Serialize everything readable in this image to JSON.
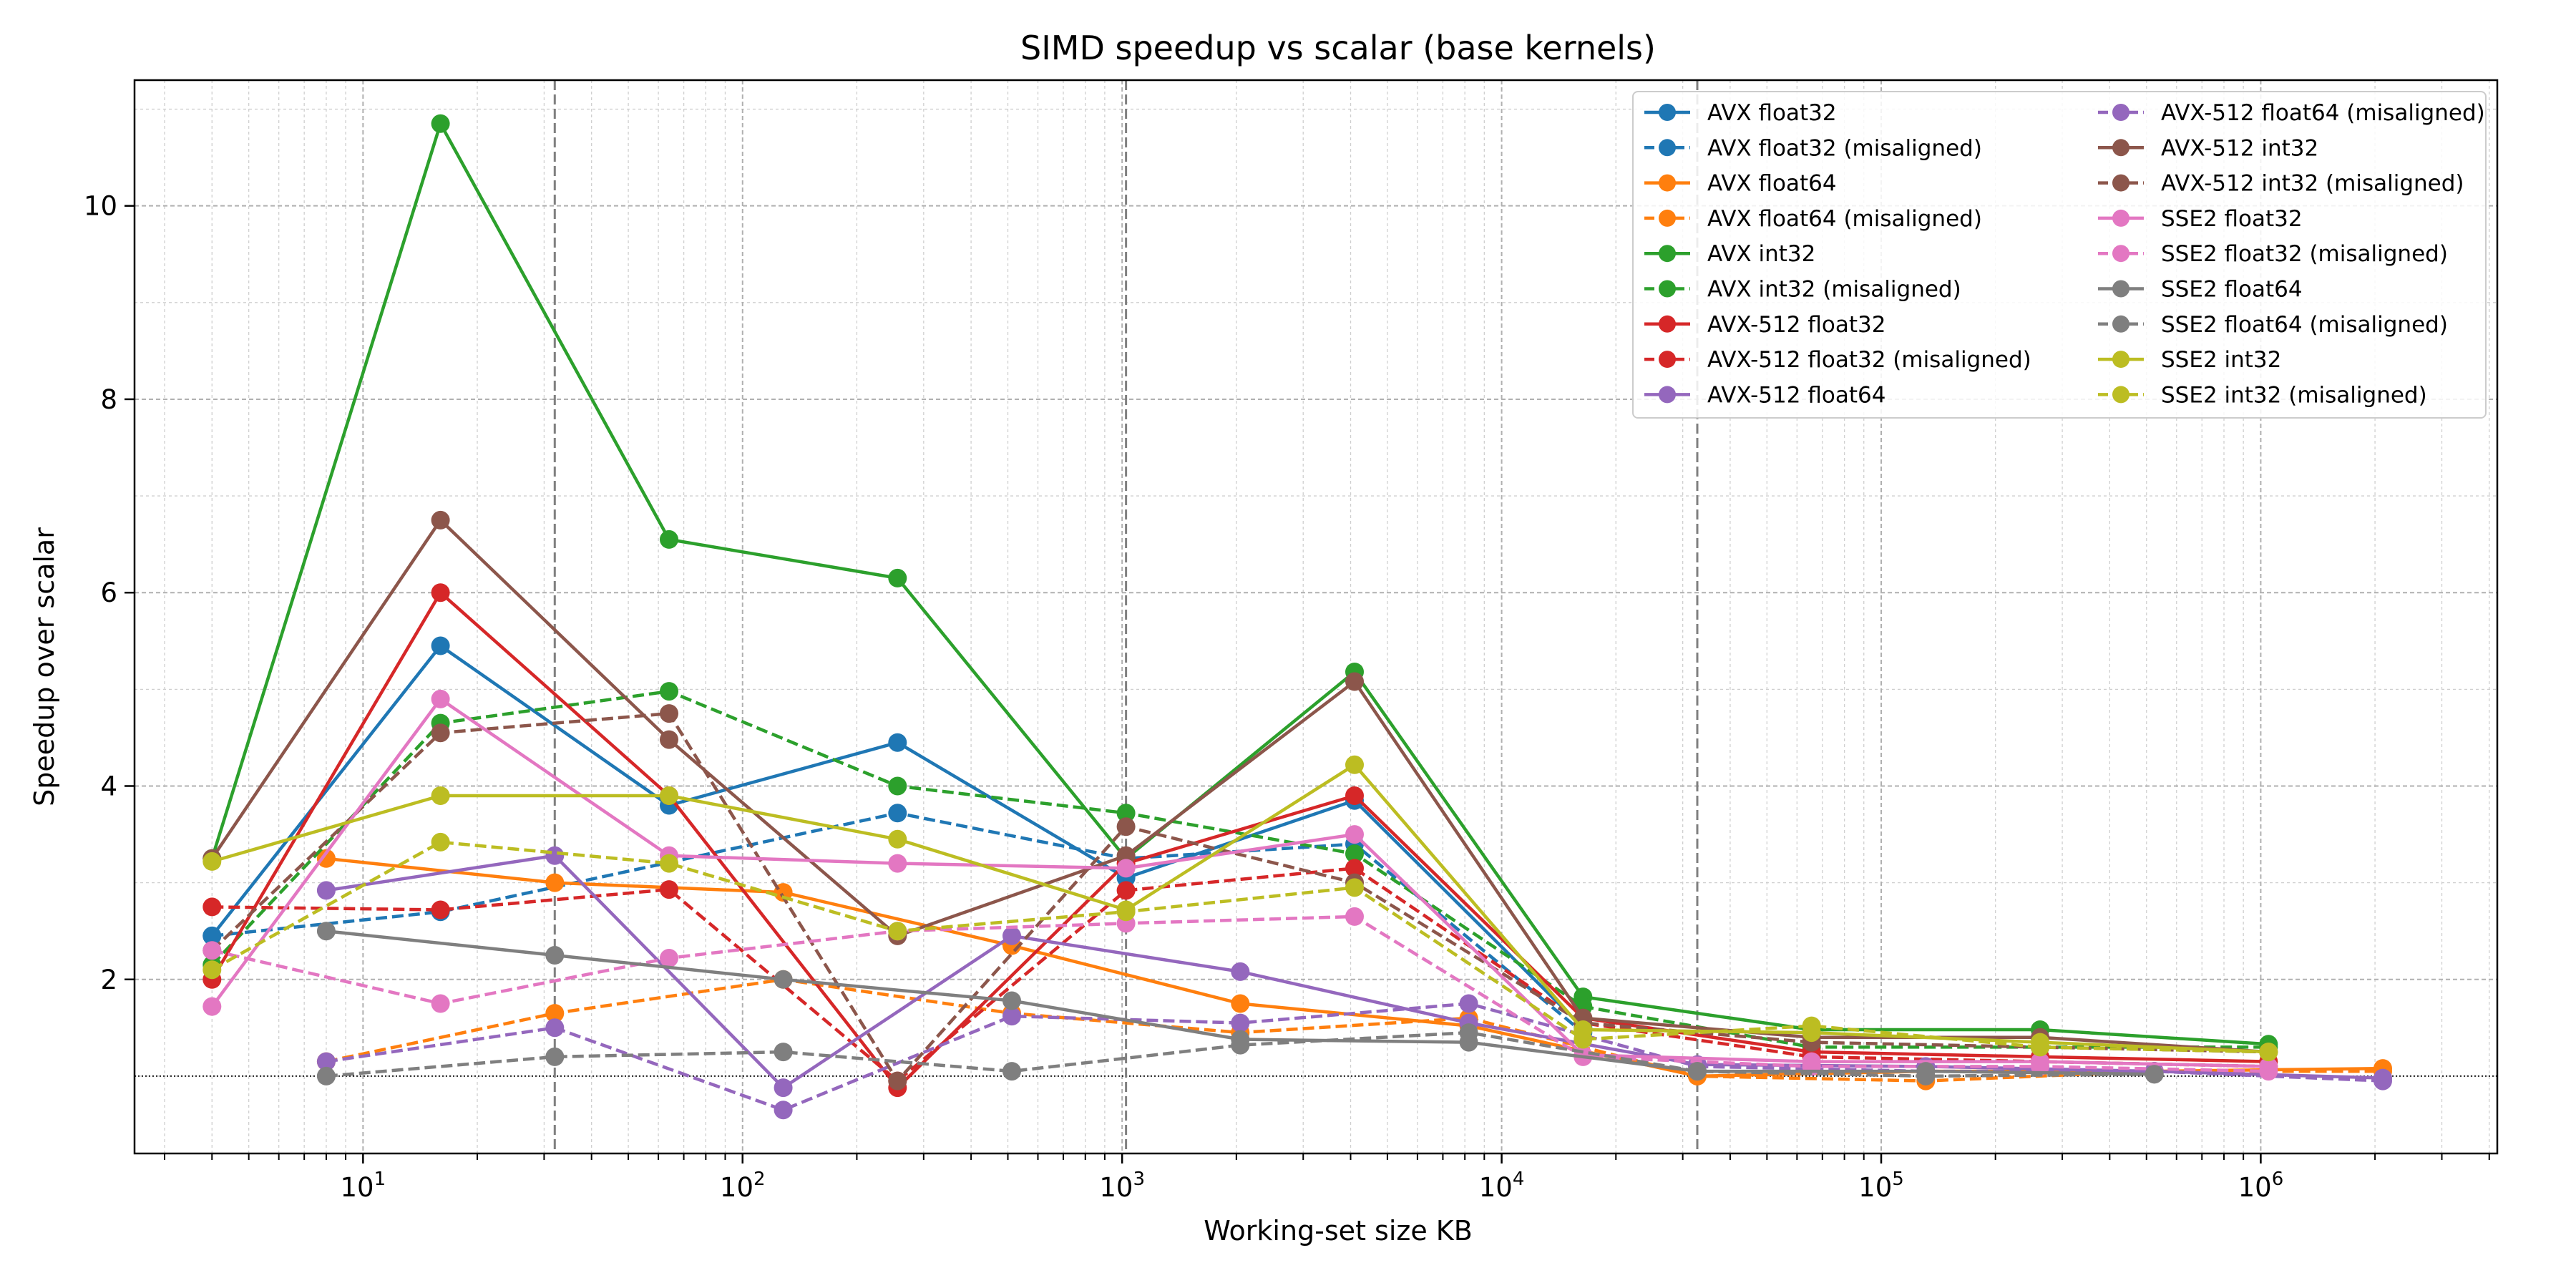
{
  "chart_data": {
    "type": "line",
    "title": "SIMD speedup vs scalar (base kernels)",
    "xlabel": "Working-set size KB",
    "ylabel": "Speedup over scalar",
    "xscale": "log",
    "xlim": [
      2.5,
      4200000
    ],
    "ylim": [
      0.2,
      11.3
    ],
    "x_tick_labels": [
      "10",
      "10",
      "10",
      "10",
      "10",
      "10"
    ],
    "x_tick_exponents": [
      "1",
      "2",
      "3",
      "4",
      "5",
      "6"
    ],
    "x_tick_values": [
      10,
      100,
      1000,
      10000,
      100000,
      1000000
    ],
    "y_ticks": [
      2,
      4,
      6,
      8,
      10
    ],
    "grid": "major and minor",
    "reference_line_y": 1.0,
    "vertical_markers_x": [
      32,
      1024,
      32768
    ],
    "legend_position": "top-right",
    "legend_columns": 2,
    "series": [
      {
        "name": "AVX float32",
        "color": "#1f77b4",
        "dashed": false,
        "x": [
          4,
          16,
          64,
          256,
          1024,
          4096,
          16384
        ],
        "y": [
          2.45,
          5.45,
          3.8,
          4.45,
          3.05,
          3.85,
          1.5
        ]
      },
      {
        "name": "AVX float32 (misaligned)",
        "color": "#1f77b4",
        "dashed": true,
        "x": [
          4,
          16,
          256,
          1024,
          4096,
          16384
        ],
        "y": [
          2.45,
          2.7,
          3.72,
          3.25,
          3.4,
          1.45
        ]
      },
      {
        "name": "AVX float64",
        "color": "#ff7f0e",
        "dashed": false,
        "x": [
          8,
          32,
          128,
          512,
          2048,
          8192,
          32768,
          131072,
          524288,
          2097152
        ],
        "y": [
          3.25,
          3.0,
          2.9,
          2.35,
          1.75,
          1.52,
          1.0,
          1.05,
          1.05,
          1.08
        ]
      },
      {
        "name": "AVX float64 (misaligned)",
        "color": "#ff7f0e",
        "dashed": true,
        "x": [
          8,
          32,
          128,
          512,
          2048,
          8192,
          32768,
          131072,
          524288,
          2097152
        ],
        "y": [
          1.15,
          1.65,
          2.0,
          1.65,
          1.45,
          1.6,
          1.0,
          0.95,
          1.05,
          1.05
        ]
      },
      {
        "name": "AVX int32",
        "color": "#2ca02c",
        "dashed": false,
        "x": [
          4,
          16,
          64,
          256,
          1024,
          4096,
          16384,
          65536,
          262144,
          1048576
        ],
        "y": [
          3.25,
          10.85,
          6.55,
          6.15,
          3.25,
          5.18,
          1.82,
          1.48,
          1.48,
          1.33
        ]
      },
      {
        "name": "AVX int32 (misaligned)",
        "color": "#2ca02c",
        "dashed": true,
        "x": [
          4,
          16,
          64,
          256,
          1024,
          4096,
          16384,
          65536,
          262144,
          1048576
        ],
        "y": [
          2.15,
          4.65,
          4.98,
          4.0,
          3.72,
          3.3,
          1.72,
          1.3,
          1.3,
          1.3
        ]
      },
      {
        "name": "AVX-512 float32",
        "color": "#d62728",
        "dashed": false,
        "x": [
          4,
          16,
          64,
          256,
          1024,
          4096,
          16384,
          65536,
          262144,
          1048576
        ],
        "y": [
          2.0,
          6.0,
          3.9,
          0.88,
          3.2,
          3.9,
          1.6,
          1.25,
          1.2,
          1.15
        ]
      },
      {
        "name": "AVX-512 float32 (misaligned)",
        "color": "#d62728",
        "dashed": true,
        "x": [
          4,
          16,
          64,
          256,
          1024,
          4096,
          16384,
          65536,
          262144,
          1048576
        ],
        "y": [
          2.75,
          2.72,
          2.93,
          0.95,
          2.92,
          3.15,
          1.55,
          1.2,
          1.15,
          1.1
        ]
      },
      {
        "name": "AVX-512 float64",
        "color": "#9467bd",
        "dashed": false,
        "x": [
          8,
          32,
          128,
          512,
          2048,
          8192,
          32768,
          131072,
          524288,
          2097152
        ],
        "y": [
          2.92,
          3.28,
          0.88,
          2.45,
          2.08,
          1.55,
          1.12,
          1.1,
          1.05,
          0.98
        ]
      },
      {
        "name": "AVX-512 float64 (misaligned)",
        "color": "#9467bd",
        "dashed": true,
        "x": [
          8,
          32,
          128,
          512,
          2048,
          8192,
          32768,
          131072,
          524288,
          2097152
        ],
        "y": [
          1.15,
          1.5,
          0.65,
          1.62,
          1.55,
          1.75,
          1.1,
          1.05,
          1.05,
          0.95
        ]
      },
      {
        "name": "AVX-512 int32",
        "color": "#8c564b",
        "dashed": false,
        "x": [
          4,
          16,
          64,
          256,
          1024,
          4096,
          16384,
          65536,
          262144,
          1048576
        ],
        "y": [
          3.25,
          6.75,
          4.48,
          2.45,
          3.28,
          5.08,
          1.6,
          1.4,
          1.4,
          1.25
        ]
      },
      {
        "name": "AVX-512 int32 (misaligned)",
        "color": "#8c564b",
        "dashed": true,
        "x": [
          4,
          16,
          64,
          256,
          1024,
          4096,
          16384,
          65536,
          262144,
          1048576
        ],
        "y": [
          2.3,
          4.55,
          4.75,
          0.95,
          3.58,
          3.0,
          1.55,
          1.35,
          1.3,
          1.25
        ]
      },
      {
        "name": "SSE2 float32",
        "color": "#e377c2",
        "dashed": false,
        "x": [
          4,
          16,
          64,
          256,
          1024,
          4096,
          16384,
          65536,
          262144,
          1048576
        ],
        "y": [
          1.72,
          4.9,
          3.28,
          3.2,
          3.15,
          3.5,
          1.22,
          1.15,
          1.15,
          1.1
        ]
      },
      {
        "name": "SSE2 float32 (misaligned)",
        "color": "#e377c2",
        "dashed": true,
        "x": [
          4,
          16,
          64,
          256,
          1024,
          4096,
          16384,
          65536,
          262144,
          1048576
        ],
        "y": [
          2.3,
          1.75,
          2.22,
          2.5,
          2.58,
          2.65,
          1.2,
          1.1,
          1.1,
          1.05
        ]
      },
      {
        "name": "SSE2 float64",
        "color": "#7f7f7f",
        "dashed": false,
        "x": [
          8,
          32,
          128,
          512,
          2048,
          8192,
          32768,
          131072,
          524288
        ],
        "y": [
          2.5,
          2.25,
          2.0,
          1.78,
          1.38,
          1.35,
          1.05,
          1.05,
          1.02
        ]
      },
      {
        "name": "SSE2 float64 (misaligned)",
        "color": "#7f7f7f",
        "dashed": true,
        "x": [
          8,
          32,
          128,
          512,
          2048,
          8192,
          32768,
          131072,
          524288
        ],
        "y": [
          1.0,
          1.2,
          1.25,
          1.05,
          1.32,
          1.45,
          1.05,
          1.0,
          1.02
        ]
      },
      {
        "name": "SSE2 int32",
        "color": "#bcbd22",
        "dashed": false,
        "x": [
          4,
          16,
          64,
          256,
          1024,
          4096,
          16384,
          65536,
          262144,
          1048576
        ],
        "y": [
          3.22,
          3.9,
          3.9,
          3.45,
          2.72,
          4.22,
          1.48,
          1.45,
          1.35,
          1.25
        ]
      },
      {
        "name": "SSE2 int32 (misaligned)",
        "color": "#bcbd22",
        "dashed": true,
        "x": [
          4,
          16,
          64,
          256,
          1024,
          4096,
          16384,
          65536,
          262144,
          1048576
        ],
        "y": [
          2.1,
          3.42,
          3.2,
          2.5,
          2.7,
          2.95,
          1.38,
          1.52,
          1.3,
          1.25
        ]
      }
    ]
  }
}
